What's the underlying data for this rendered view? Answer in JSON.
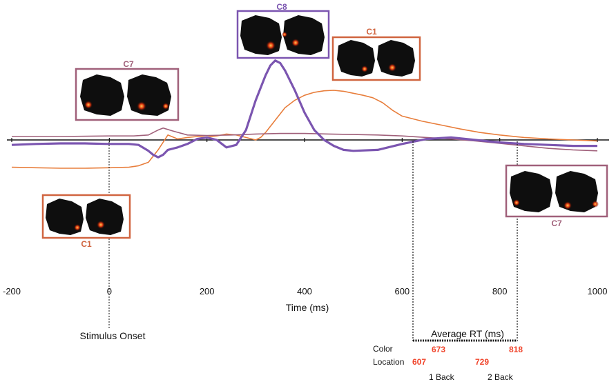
{
  "chart_data": {
    "type": "line",
    "xlabel": "Time (ms)",
    "xlim": [
      -200,
      1000
    ],
    "ylim": [
      -1.5,
      1.8
    ],
    "x_ticks": [
      -200,
      0,
      200,
      400,
      600,
      800,
      1000
    ],
    "x_tick_labels": [
      "-200",
      "0",
      "200",
      "400",
      "600",
      "800",
      "1000"
    ],
    "series": [
      {
        "color": "#e87e3c",
        "width": 1.6,
        "x": [
          -200,
          -150,
          -100,
          -50,
          0,
          40,
          60,
          80,
          100,
          120,
          140,
          160,
          180,
          200,
          220,
          240,
          260,
          280,
          300,
          310,
          320,
          340,
          360,
          380,
          400,
          420,
          440,
          460,
          480,
          500,
          520,
          540,
          560,
          580,
          600,
          640,
          680,
          720,
          760,
          800,
          850,
          900,
          950,
          1000
        ],
        "y": [
          -0.55,
          -0.56,
          -0.57,
          -0.57,
          -0.56,
          -0.55,
          -0.52,
          -0.45,
          -0.2,
          0.1,
          0.02,
          0.05,
          0.07,
          0.06,
          0.08,
          0.12,
          0.1,
          0.05,
          0.0,
          0.05,
          0.15,
          0.4,
          0.65,
          0.8,
          0.9,
          0.96,
          0.99,
          1.0,
          0.98,
          0.94,
          0.9,
          0.85,
          0.75,
          0.6,
          0.48,
          0.38,
          0.3,
          0.22,
          0.15,
          0.1,
          0.05,
          0.02,
          0.0,
          -0.02
        ]
      },
      {
        "color": "#a0607a",
        "width": 1.6,
        "x": [
          -200,
          -100,
          0,
          50,
          80,
          100,
          110,
          130,
          160,
          200,
          250,
          300,
          350,
          400,
          450,
          500,
          550,
          600,
          650,
          700,
          750,
          800,
          850,
          900,
          950,
          1000
        ],
        "y": [
          0.07,
          0.07,
          0.08,
          0.08,
          0.1,
          0.2,
          0.24,
          0.18,
          0.1,
          0.09,
          0.1,
          0.12,
          0.13,
          0.13,
          0.12,
          0.11,
          0.1,
          0.08,
          0.05,
          0.02,
          -0.02,
          -0.07,
          -0.12,
          -0.17,
          -0.2,
          -0.22
        ]
      },
      {
        "color": "#7b55b0",
        "width": 3.2,
        "x": [
          -200,
          -150,
          -100,
          -50,
          0,
          40,
          60,
          80,
          90,
          100,
          110,
          120,
          140,
          160,
          180,
          200,
          220,
          240,
          260,
          280,
          300,
          320,
          330,
          340,
          350,
          360,
          380,
          400,
          420,
          440,
          460,
          480,
          500,
          550,
          600,
          650,
          700,
          750,
          800,
          850,
          900,
          950,
          1000
        ],
        "y": [
          -0.1,
          -0.08,
          -0.07,
          -0.07,
          -0.08,
          -0.08,
          -0.1,
          -0.22,
          -0.3,
          -0.35,
          -0.3,
          -0.2,
          -0.15,
          -0.08,
          0.02,
          0.05,
          0.0,
          -0.15,
          -0.1,
          0.2,
          0.8,
          1.3,
          1.5,
          1.6,
          1.55,
          1.4,
          1.0,
          0.55,
          0.2,
          0.0,
          -0.12,
          -0.2,
          -0.22,
          -0.2,
          -0.08,
          0.02,
          0.05,
          0.0,
          -0.05,
          -0.08,
          -0.1,
          -0.12,
          -0.12
        ]
      }
    ],
    "annotations": {
      "stimulus_onset": {
        "label": "Stimulus Onset",
        "x": 0
      },
      "average_rt": {
        "title": "Average RT (ms)",
        "range": [
          607,
          818
        ],
        "rows": [
          {
            "label": "Color",
            "values": [
              673,
              818
            ],
            "value_text": [
              "673",
              "818"
            ]
          },
          {
            "label": "Location",
            "values": [
              607,
              729
            ],
            "value_text": [
              "607",
              "729"
            ]
          }
        ],
        "condition_labels": [
          "1 Back",
          "2 Back"
        ]
      },
      "components": [
        {
          "label": "C7",
          "color": "#a0607a"
        },
        {
          "label": "C8",
          "color": "#7b55b0"
        },
        {
          "label": "C1",
          "color": "#d0643f"
        },
        {
          "label": "C1",
          "color": "#d0643f"
        },
        {
          "label": "C7",
          "color": "#a0607a"
        }
      ]
    }
  }
}
